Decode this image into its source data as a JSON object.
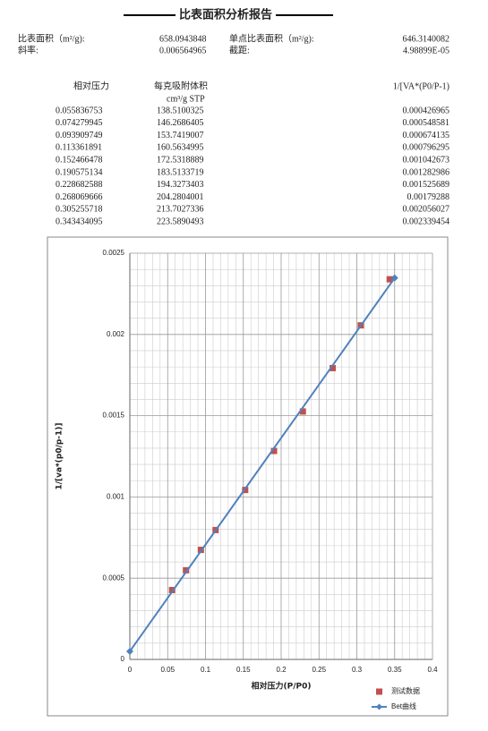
{
  "header": {
    "title": "比表面积分析报告"
  },
  "info": [
    [
      "比表面积（m²/g):",
      658.0943848,
      "单点比表面积（m²/g):",
      646.3140082
    ],
    [
      "斜率:",
      0.006564965,
      "截距:",
      "4.98899E-05"
    ]
  ],
  "table": {
    "headers": [
      "相对压力",
      "每克吸附体积",
      "cm³/g STP",
      "1/[VA*(P0/P-1)"
    ],
    "rows": [
      [
        0.055836753,
        138.5100325,
        0.000426965
      ],
      [
        0.074279945,
        146.2686405,
        0.000548581
      ],
      [
        0.093909749,
        153.7419007,
        0.000674135
      ],
      [
        0.113361891,
        160.5634995,
        0.000796295
      ],
      [
        0.152466478,
        172.5318889,
        0.001042673
      ],
      [
        0.190575134,
        183.5133719,
        0.001282986
      ],
      [
        0.228682588,
        194.3273403,
        0.001525689
      ],
      [
        0.268069666,
        204.2804001,
        0.00179288
      ],
      [
        0.305255718,
        213.7027336,
        0.002056027
      ],
      [
        0.343434095,
        223.5890493,
        0.002339454
      ]
    ]
  },
  "chart_data": {
    "type": "scatter",
    "x_label": "相对压力(P/P0)",
    "y_label": "1/[va*(p0/p-1)]",
    "xlim": [
      0,
      0.4
    ],
    "xticks": [
      0,
      0.05,
      0.1,
      0.15,
      0.2,
      0.25,
      0.3,
      0.35,
      0.4
    ],
    "ylim": [
      0,
      0.0025
    ],
    "yticks": [
      0,
      0.0005,
      0.001,
      0.0015,
      0.002,
      0.0025
    ],
    "grid": true,
    "series": [
      {
        "name": "测试数据",
        "type": "scatter",
        "color": "#c0504d",
        "x": [
          0.055836753,
          0.074279945,
          0.093909749,
          0.113361891,
          0.152466478,
          0.190575134,
          0.228682588,
          0.268069666,
          0.305255718,
          0.343434095
        ],
        "values": [
          0.000426965,
          0.000548581,
          0.000674135,
          0.000796295,
          0.001042673,
          0.001282986,
          0.001525689,
          0.00179288,
          0.002056027,
          0.002339454
        ]
      },
      {
        "name": "Bet曲线",
        "type": "line",
        "color": "#4f81bd",
        "x": [
          0,
          0.35
        ],
        "values": [
          4.98899e-05,
          0.0023477
        ]
      }
    ]
  }
}
